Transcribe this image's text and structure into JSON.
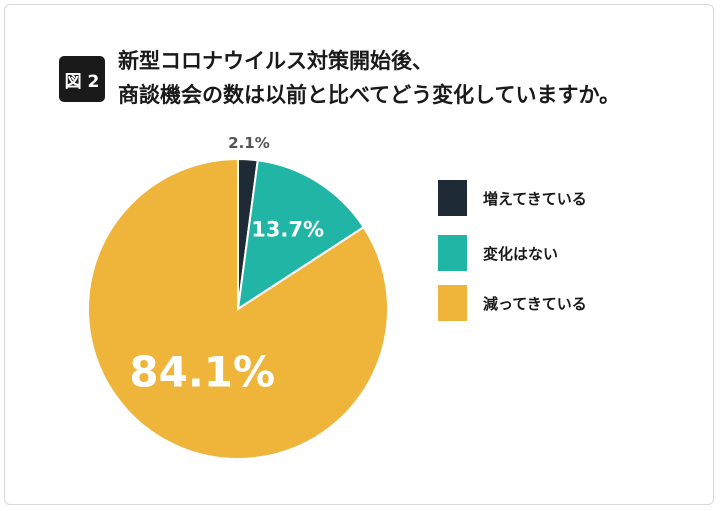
{
  "figure": {
    "badge": "図 2",
    "title_line1": "新型コロナウイルス対策開始後、",
    "title_line2": "商談機会の数は以前と比べてどう変化していますか。"
  },
  "chart_data": {
    "type": "pie",
    "start": "12 o'clock",
    "direction": "clockwise",
    "slices": [
      {
        "label": "増えてきている",
        "value": 2.1,
        "display": "2.1%",
        "color": "#1e2b36"
      },
      {
        "label": "変化はない",
        "value": 13.7,
        "display": "13.7%",
        "color": "#21b5a6"
      },
      {
        "label": "減ってきている",
        "value": 84.1,
        "display": "84.1%",
        "color": "#eeb53a"
      }
    ],
    "legend_placement": "right"
  }
}
